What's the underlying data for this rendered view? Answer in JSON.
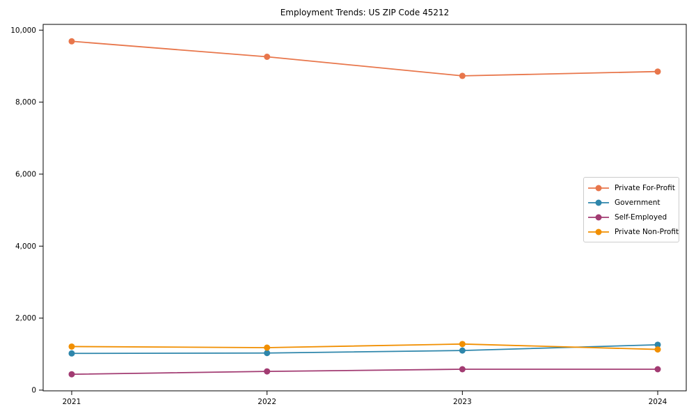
{
  "chart_data": {
    "type": "line",
    "title": "Employment Trends: US ZIP Code 45212",
    "x": [
      2021,
      2022,
      2023,
      2024
    ],
    "x_tick_labels": [
      "2021",
      "2022",
      "2023",
      "2024"
    ],
    "series": [
      {
        "name": "Private For-Profit",
        "color": "#E8764B",
        "values": [
          9690,
          9260,
          8730,
          8850
        ]
      },
      {
        "name": "Government",
        "color": "#2E86AB",
        "values": [
          1020,
          1030,
          1100,
          1260
        ]
      },
      {
        "name": "Self-Employed",
        "color": "#A23B72",
        "values": [
          440,
          520,
          580,
          580
        ]
      },
      {
        "name": "Private Non-Profit",
        "color": "#F18F01",
        "values": [
          1210,
          1180,
          1280,
          1130
        ]
      }
    ],
    "yticks": [
      0,
      2000,
      4000,
      6000,
      8000,
      10000
    ],
    "ytick_labels": [
      "0",
      "2,000",
      "4,000",
      "6,000",
      "8,000",
      "10,000"
    ],
    "ylim": [
      -20,
      10160
    ],
    "grid": false,
    "legend_position": "center right",
    "marker": "circle",
    "axis_color": "#000000"
  }
}
